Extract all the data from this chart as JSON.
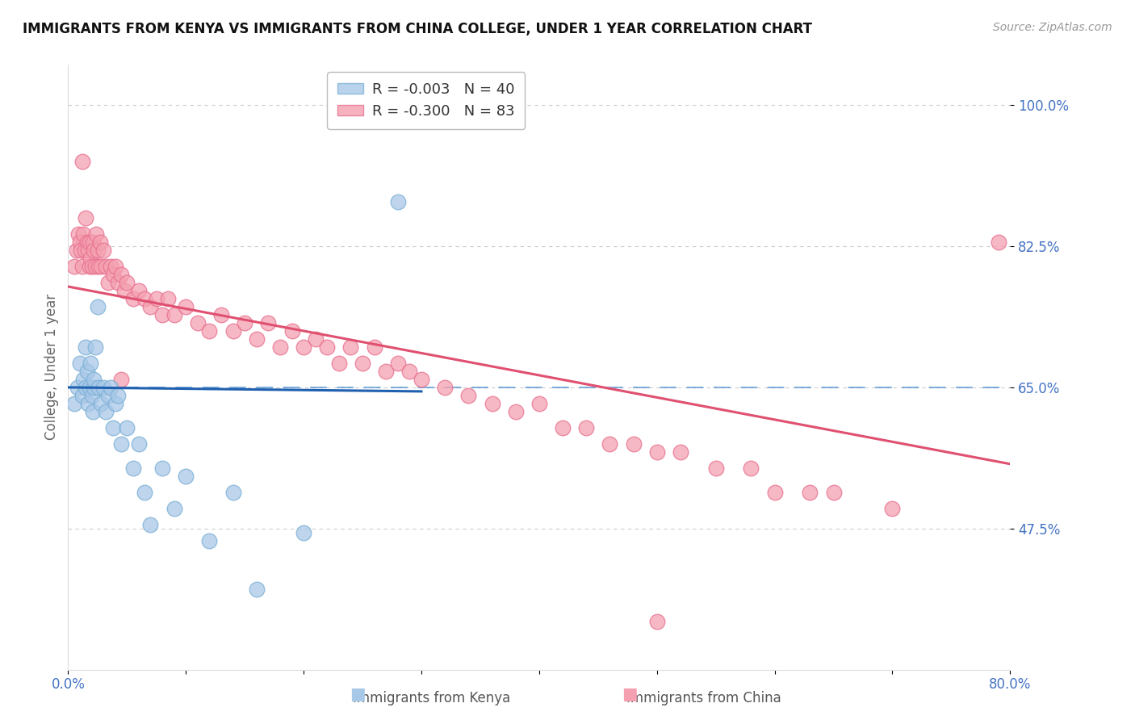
{
  "title": "IMMIGRANTS FROM KENYA VS IMMIGRANTS FROM CHINA COLLEGE, UNDER 1 YEAR CORRELATION CHART",
  "source": "Source: ZipAtlas.com",
  "ylabel": "College, Under 1 year",
  "kenya_color": "#a8c8e8",
  "china_color": "#f4a0b0",
  "kenya_edge_color": "#7aafd4",
  "china_edge_color": "#e87090",
  "kenya_trend_color": "#2060b0",
  "china_trend_color": "#e05070",
  "mean_line_color": "#5090d0",
  "grid_color": "#cccccc",
  "kenya_R": -0.003,
  "kenya_N": 40,
  "china_R": -0.3,
  "china_N": 83,
  "xmin": 0.0,
  "xmax": 0.8,
  "ymin": 0.3,
  "ymax": 1.05,
  "ytick_positions": [
    0.475,
    0.65,
    0.825,
    1.0
  ],
  "ytick_labels": [
    "47.5%",
    "65.0%",
    "82.5%",
    "100.0%"
  ],
  "xtick_positions": [
    0.0,
    0.1,
    0.2,
    0.3,
    0.4,
    0.5,
    0.6,
    0.7,
    0.8
  ],
  "xtick_labels": [
    "0.0%",
    "",
    "",
    "",
    "",
    "",
    "",
    "",
    "80.0%"
  ],
  "mean_line_y": 0.65,
  "kenya_trend_x": [
    0.0,
    0.3
  ],
  "kenya_trend_y": [
    0.65,
    0.645
  ],
  "china_trend_x": [
    0.0,
    0.8
  ],
  "china_trend_y": [
    0.775,
    0.555
  ],
  "kenya_points_x": [
    0.005,
    0.008,
    0.01,
    0.012,
    0.013,
    0.015,
    0.015,
    0.016,
    0.017,
    0.018,
    0.019,
    0.02,
    0.021,
    0.022,
    0.022,
    0.023,
    0.025,
    0.026,
    0.028,
    0.03,
    0.032,
    0.034,
    0.036,
    0.038,
    0.04,
    0.042,
    0.045,
    0.05,
    0.055,
    0.06,
    0.065,
    0.07,
    0.08,
    0.09,
    0.1,
    0.12,
    0.14,
    0.16,
    0.2,
    0.28
  ],
  "kenya_points_y": [
    0.63,
    0.65,
    0.68,
    0.64,
    0.66,
    0.7,
    0.65,
    0.67,
    0.63,
    0.65,
    0.68,
    0.64,
    0.62,
    0.65,
    0.66,
    0.7,
    0.75,
    0.65,
    0.63,
    0.65,
    0.62,
    0.64,
    0.65,
    0.6,
    0.63,
    0.64,
    0.58,
    0.6,
    0.55,
    0.58,
    0.52,
    0.48,
    0.55,
    0.5,
    0.54,
    0.46,
    0.52,
    0.4,
    0.47,
    0.88
  ],
  "china_points_x": [
    0.005,
    0.007,
    0.009,
    0.01,
    0.011,
    0.012,
    0.013,
    0.014,
    0.015,
    0.016,
    0.017,
    0.018,
    0.018,
    0.019,
    0.02,
    0.021,
    0.022,
    0.023,
    0.024,
    0.025,
    0.026,
    0.027,
    0.028,
    0.03,
    0.032,
    0.034,
    0.036,
    0.038,
    0.04,
    0.042,
    0.045,
    0.048,
    0.05,
    0.055,
    0.06,
    0.065,
    0.07,
    0.075,
    0.08,
    0.085,
    0.09,
    0.1,
    0.11,
    0.12,
    0.13,
    0.14,
    0.15,
    0.16,
    0.17,
    0.18,
    0.19,
    0.2,
    0.21,
    0.22,
    0.23,
    0.24,
    0.25,
    0.26,
    0.27,
    0.28,
    0.29,
    0.3,
    0.32,
    0.34,
    0.36,
    0.38,
    0.4,
    0.42,
    0.44,
    0.46,
    0.48,
    0.5,
    0.52,
    0.55,
    0.58,
    0.6,
    0.63,
    0.65,
    0.7,
    0.79,
    0.012,
    0.045,
    0.5
  ],
  "china_points_y": [
    0.8,
    0.82,
    0.84,
    0.83,
    0.82,
    0.8,
    0.84,
    0.82,
    0.86,
    0.83,
    0.82,
    0.8,
    0.83,
    0.81,
    0.8,
    0.83,
    0.82,
    0.8,
    0.84,
    0.82,
    0.8,
    0.83,
    0.8,
    0.82,
    0.8,
    0.78,
    0.8,
    0.79,
    0.8,
    0.78,
    0.79,
    0.77,
    0.78,
    0.76,
    0.77,
    0.76,
    0.75,
    0.76,
    0.74,
    0.76,
    0.74,
    0.75,
    0.73,
    0.72,
    0.74,
    0.72,
    0.73,
    0.71,
    0.73,
    0.7,
    0.72,
    0.7,
    0.71,
    0.7,
    0.68,
    0.7,
    0.68,
    0.7,
    0.67,
    0.68,
    0.67,
    0.66,
    0.65,
    0.64,
    0.63,
    0.62,
    0.63,
    0.6,
    0.6,
    0.58,
    0.58,
    0.57,
    0.57,
    0.55,
    0.55,
    0.52,
    0.52,
    0.52,
    0.5,
    0.83,
    0.93,
    0.66,
    0.36
  ]
}
